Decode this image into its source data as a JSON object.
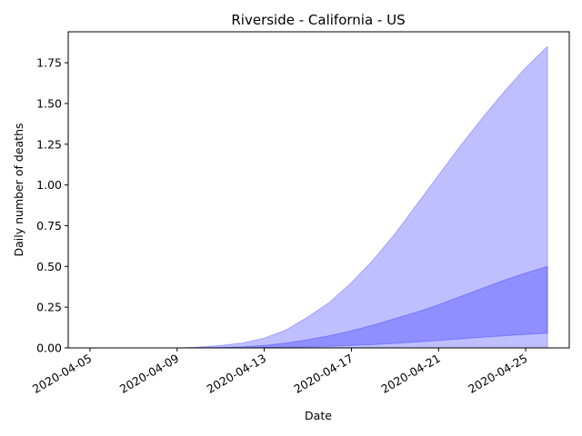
{
  "chart_data": {
    "type": "area",
    "title": "Riverside - California - US",
    "xlabel": "Date",
    "ylabel": "Daily number of deaths",
    "x_tick_labels": [
      "2020-04-05",
      "2020-04-09",
      "2020-04-13",
      "2020-04-17",
      "2020-04-21",
      "2020-04-25"
    ],
    "y_tick_labels": [
      "0.00",
      "0.25",
      "0.50",
      "0.75",
      "1.00",
      "1.25",
      "1.50",
      "1.75"
    ],
    "y_ticks": [
      0,
      0.25,
      0.5,
      0.75,
      1.0,
      1.25,
      1.5,
      1.75
    ],
    "ylim": [
      0,
      1.94
    ],
    "xlim": [
      "2020-04-04",
      "2020-04-27"
    ],
    "grid": false,
    "dates": [
      "2020-04-09",
      "2020-04-10",
      "2020-04-11",
      "2020-04-12",
      "2020-04-13",
      "2020-04-14",
      "2020-04-15",
      "2020-04-16",
      "2020-04-17",
      "2020-04-18",
      "2020-04-19",
      "2020-04-20",
      "2020-04-21",
      "2020-04-22",
      "2020-04-23",
      "2020-04-24",
      "2020-04-25",
      "2020-04-26"
    ],
    "series": [
      {
        "role": "outer-band",
        "color": "#0000ff",
        "opacity": 0.25,
        "lower": [
          0,
          0,
          0,
          0,
          0,
          0,
          0,
          0,
          0,
          0,
          0,
          0,
          0,
          0,
          0,
          0,
          0,
          0
        ],
        "upper": [
          0.0,
          0.005,
          0.015,
          0.03,
          0.06,
          0.11,
          0.19,
          0.28,
          0.4,
          0.54,
          0.7,
          0.88,
          1.06,
          1.24,
          1.41,
          1.57,
          1.72,
          1.85
        ]
      },
      {
        "role": "inner-band",
        "color": "#0000ff",
        "opacity": 0.25,
        "lower": [
          0,
          0,
          0,
          0,
          0.002,
          0.004,
          0.007,
          0.01,
          0.015,
          0.02,
          0.028,
          0.036,
          0.045,
          0.055,
          0.065,
          0.074,
          0.083,
          0.09
        ],
        "upper": [
          0.0,
          0.001,
          0.003,
          0.007,
          0.015,
          0.03,
          0.05,
          0.075,
          0.105,
          0.14,
          0.18,
          0.22,
          0.265,
          0.315,
          0.365,
          0.415,
          0.46,
          0.5
        ]
      }
    ]
  }
}
